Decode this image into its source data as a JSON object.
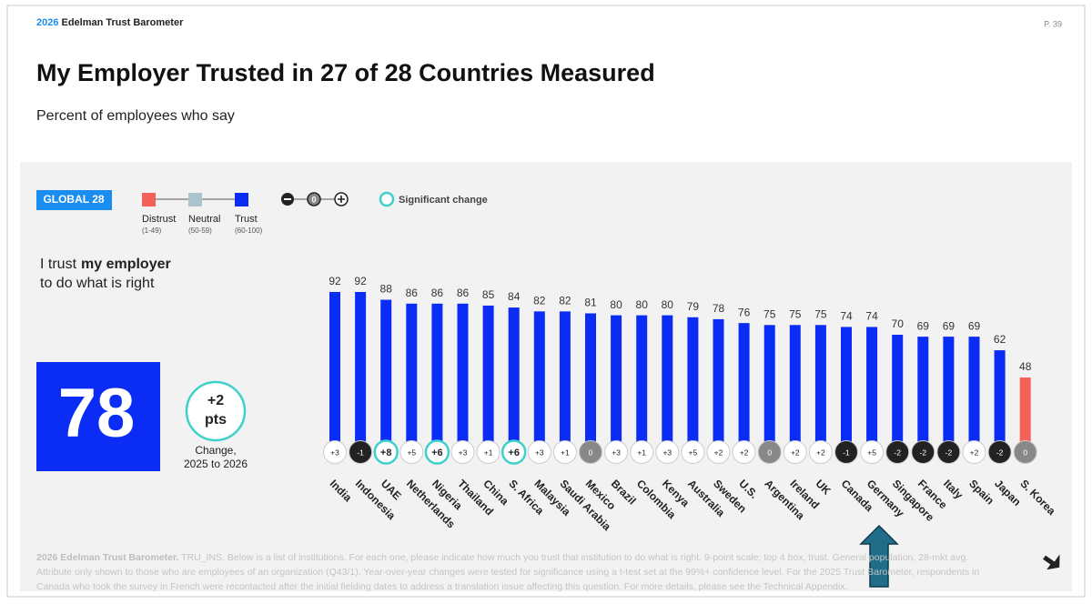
{
  "header": {
    "brand_year": "2026",
    "brand_name": "Edelman Trust Barometer",
    "page": "P. 39",
    "title": "My Employer Trusted in 27 of 28 Countries Measured",
    "subtitle": "Percent of employees who say"
  },
  "legend": {
    "badge": "GLOBAL 28",
    "items": [
      {
        "name": "Distrust",
        "range": {
          "min": 1,
          "max": 49,
          "label": "(1-49)"
        },
        "color": "#f4605a"
      },
      {
        "name": "Neutral",
        "range": {
          "min": 50,
          "max": 59,
          "label": "(50-59)"
        },
        "color": "#a9c4cc"
      },
      {
        "name": "Trust",
        "range": {
          "min": 60,
          "max": 100,
          "label": "(60-100)"
        },
        "color": "#0a2cf5"
      }
    ],
    "change_key": [
      "0"
    ],
    "significant": "Significant change"
  },
  "statement": {
    "pre": "I trust",
    "bold": "my employer",
    "post": "to do what is right"
  },
  "global": {
    "value": 78,
    "change": {
      "value": 2,
      "label": "+2"
    },
    "unit": "pts",
    "caption": [
      "Change,",
      "2025 to 2026"
    ]
  },
  "chart_data": {
    "type": "bar",
    "categories": [
      "India",
      "Indonesia",
      "UAE",
      "Netherlands",
      "Nigeria",
      "Thailand",
      "China",
      "S. Africa",
      "Malaysia",
      "Saudi Arabia",
      "Mexico",
      "Brazil",
      "Colombia",
      "Kenya",
      "Australia",
      "Sweden",
      "U.S.",
      "Argentina",
      "Ireland",
      "UK",
      "Canada",
      "Germany",
      "Singapore",
      "France",
      "Italy",
      "Spain",
      "Japan",
      "S. Korea"
    ],
    "values": [
      92,
      92,
      88,
      86,
      86,
      86,
      85,
      84,
      82,
      82,
      81,
      80,
      80,
      80,
      79,
      78,
      76,
      75,
      75,
      75,
      74,
      74,
      70,
      69,
      69,
      69,
      62,
      48
    ],
    "changes": [
      {
        "value": 3,
        "label": "+3",
        "significant": false
      },
      {
        "value": -1,
        "label": "-1",
        "significant": false
      },
      {
        "value": 8,
        "label": "+8",
        "significant": true
      },
      {
        "value": 5,
        "label": "+5",
        "significant": false
      },
      {
        "value": 6,
        "label": "+6",
        "significant": true
      },
      {
        "value": 3,
        "label": "+3",
        "significant": false
      },
      {
        "value": 1,
        "label": "+1",
        "significant": false
      },
      {
        "value": 6,
        "label": "+6",
        "significant": true
      },
      {
        "value": 3,
        "label": "+3",
        "significant": false
      },
      {
        "value": 1,
        "label": "+1",
        "significant": false
      },
      {
        "value": 0,
        "label": "0",
        "significant": false
      },
      {
        "value": 3,
        "label": "+3",
        "significant": false
      },
      {
        "value": 1,
        "label": "+1",
        "significant": false
      },
      {
        "value": 3,
        "label": "+3",
        "significant": false
      },
      {
        "value": 5,
        "label": "+5",
        "significant": false
      },
      {
        "value": 2,
        "label": "+2",
        "significant": false
      },
      {
        "value": 2,
        "label": "+2",
        "significant": false
      },
      {
        "value": 0,
        "label": "0",
        "significant": false
      },
      {
        "value": 2,
        "label": "+2",
        "significant": false
      },
      {
        "value": 2,
        "label": "+2",
        "significant": false
      },
      {
        "value": -1,
        "label": "-1",
        "significant": false
      },
      {
        "value": 5,
        "label": "+5",
        "significant": false
      },
      {
        "value": -2,
        "label": "-2",
        "significant": false
      },
      {
        "value": -2,
        "label": "-2",
        "significant": false
      },
      {
        "value": -2,
        "label": "-2",
        "significant": false
      },
      {
        "value": 2,
        "label": "+2",
        "significant": false
      },
      {
        "value": -2,
        "label": "-2",
        "significant": false
      },
      {
        "value": 0,
        "label": "0",
        "significant": false
      }
    ]
  },
  "footnote": {
    "source": "2026 Edelman Trust Barometer.",
    "note": "TRU_INS. Below is a list of institutions. For each one, please indicate how much you trust that institution to do what is right. 9-point scale; top 4 box, trust. General population, 28-mkt avg. Attribute only shown to those who are employees of an organization (Q43/1). Year-over-year changes were tested for significance using a t-test set at the 99%+ confidence level. For the 2025 Trust Barometer, respondents in Canada who took the survey in French were recontacted after the initial fielding dates to address a translation issue affecting this question. For more details, please see the Technical Appendix."
  }
}
